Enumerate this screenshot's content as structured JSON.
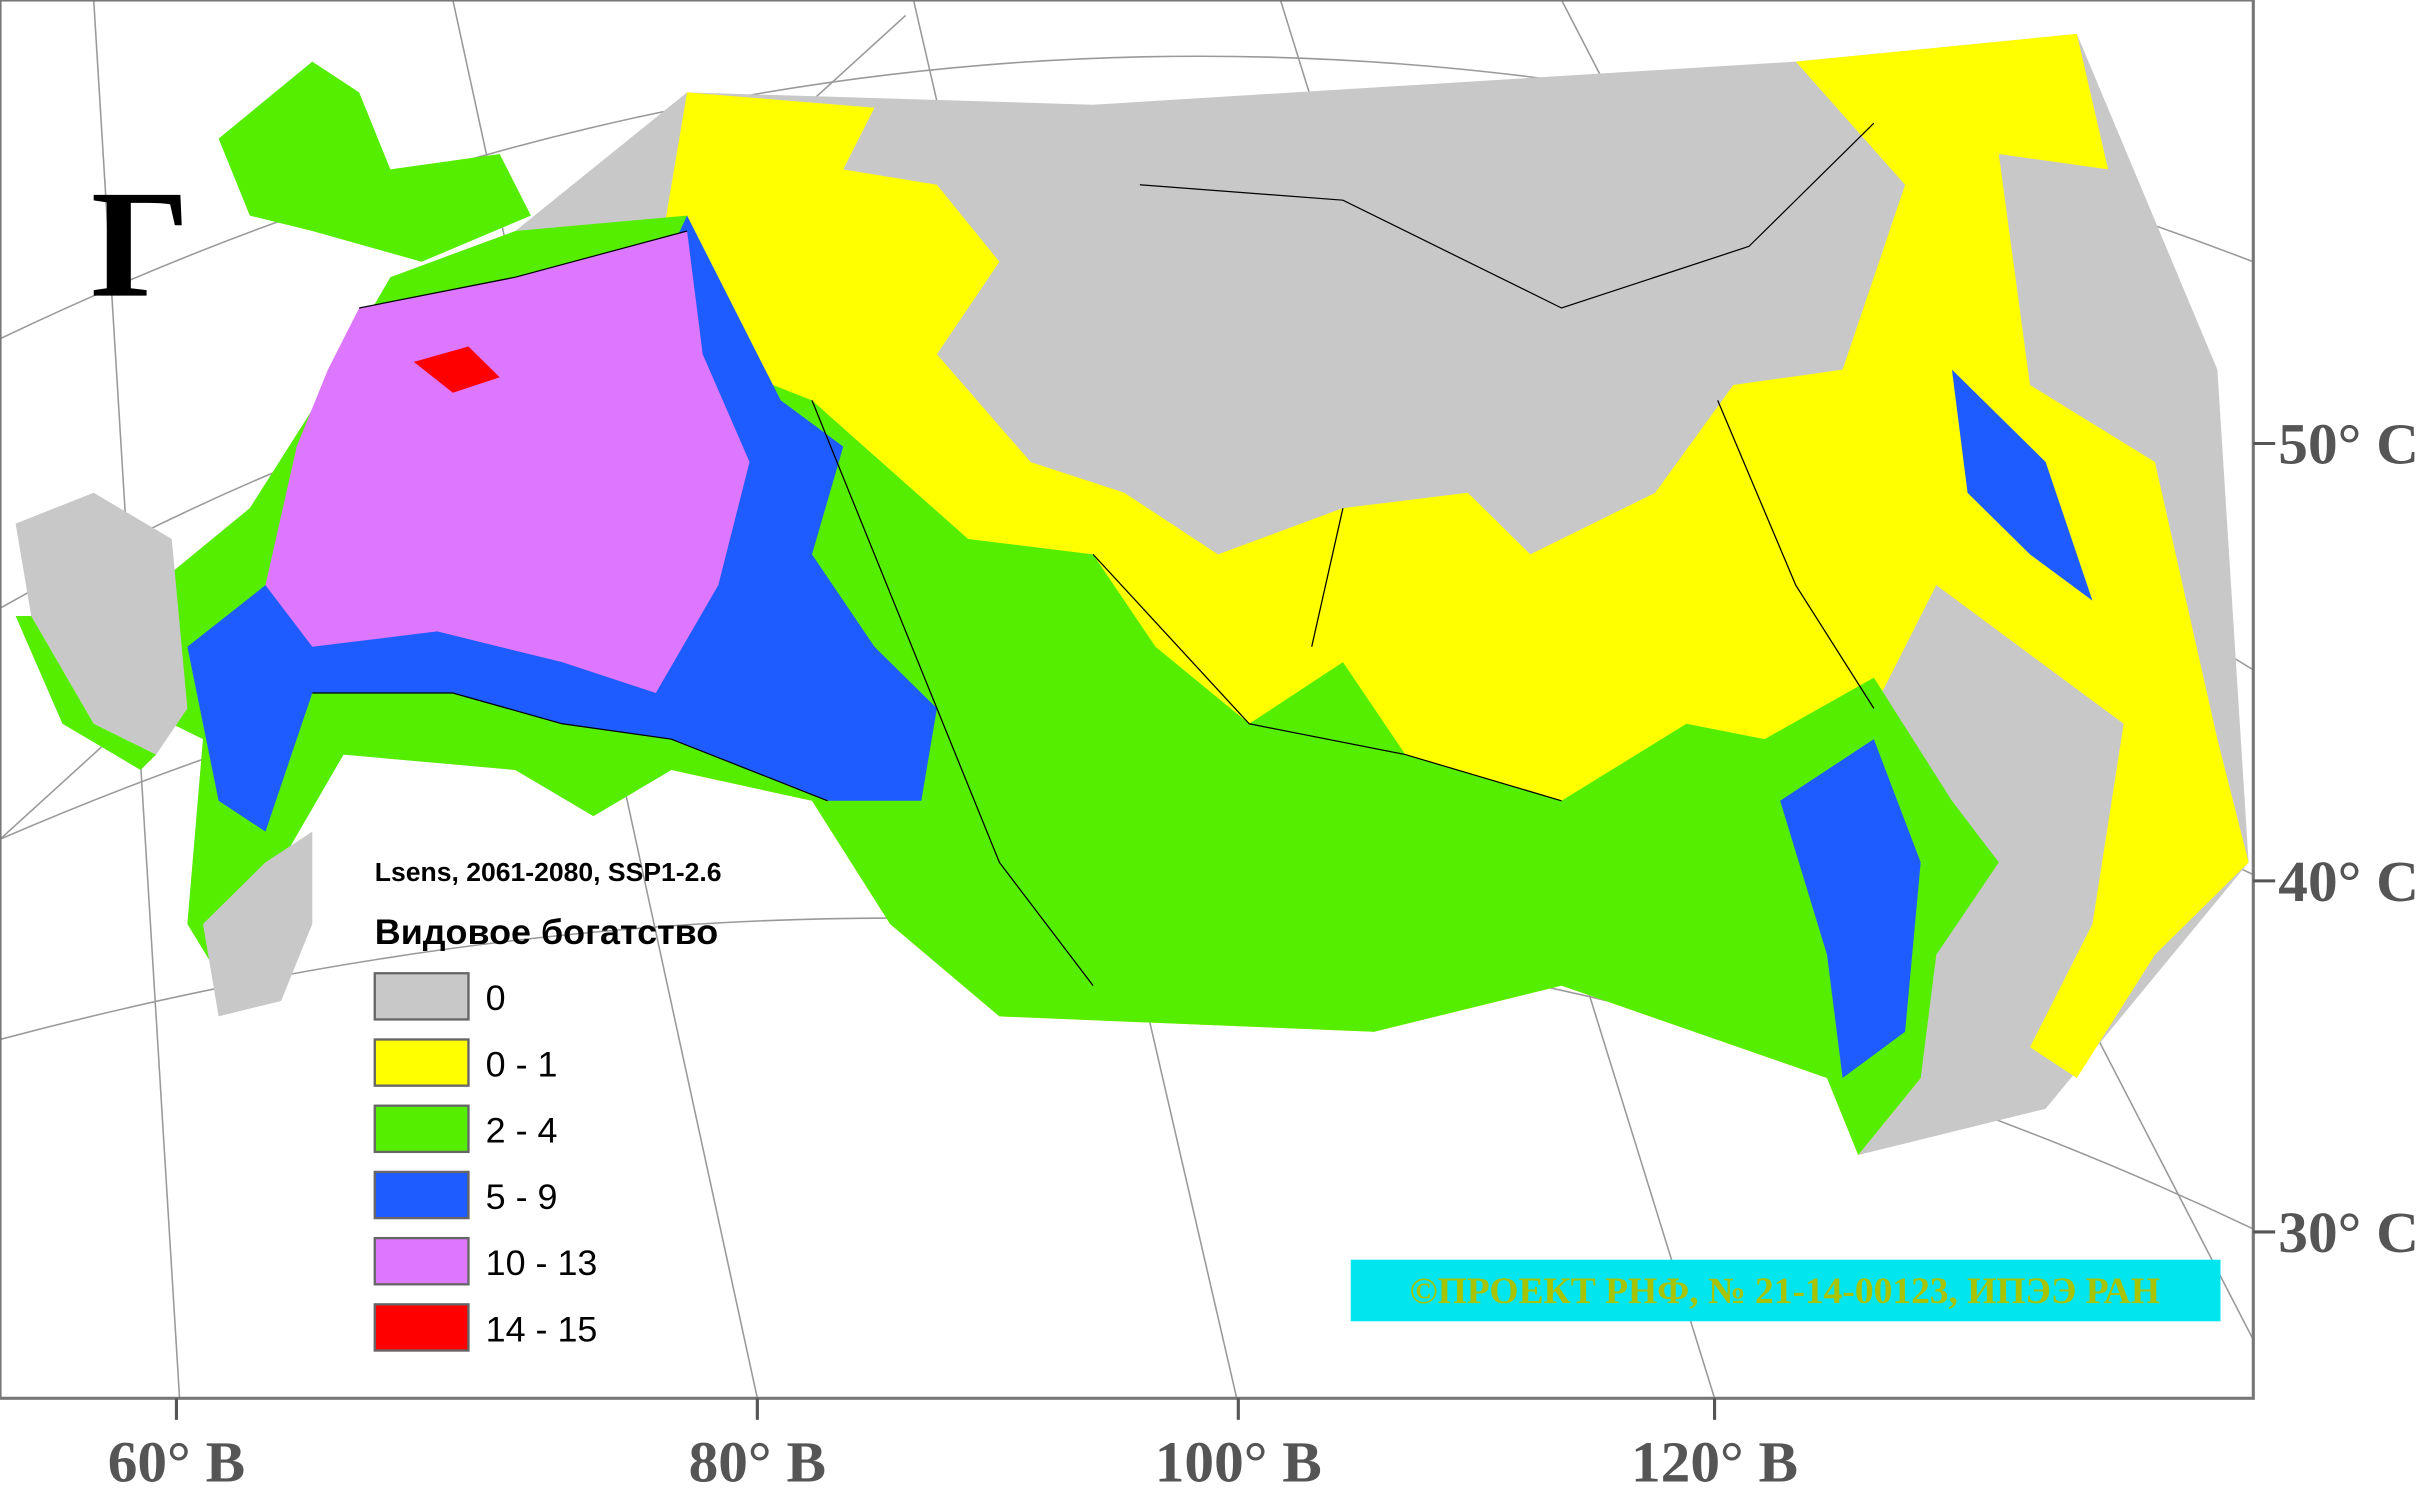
{
  "panel_label": "Г",
  "legend": {
    "subtitle": "Lsens, 2061-2080, SSP1-2.6",
    "title": "Видовое богатство",
    "items": [
      {
        "label": "0",
        "color": "#c8c8c8"
      },
      {
        "label": "0 - 1",
        "color": "#ffff00"
      },
      {
        "label": "2 - 4",
        "color": "#55ee00"
      },
      {
        "label": "5 - 9",
        "color": "#1f5cff"
      },
      {
        "label": "10 - 13",
        "color": "#dd77ff"
      },
      {
        "label": "14 - 15",
        "color": "#ff0000"
      }
    ]
  },
  "longitude_labels": [
    "60° В",
    "80° В",
    "100° В",
    "120° В"
  ],
  "latitude_labels": [
    "50° С",
    "40° С",
    "30° С"
  ],
  "credit": "©ПРОЕКТ РНФ, № 21-14-00123, ИПЭЭ РАН"
}
